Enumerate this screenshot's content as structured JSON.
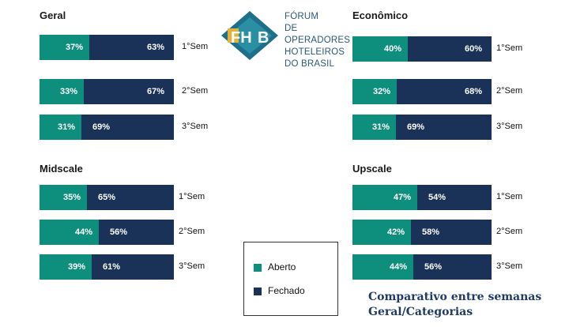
{
  "colors": {
    "aberto": "#0e8f7e",
    "fechado": "#1a3158"
  },
  "logo": {
    "icon": "fohb-logo-icon",
    "lines": [
      "FÓRUM",
      "DE OPERADORES",
      "HOTELEIROS",
      "DO BRASIL"
    ]
  },
  "legend": {
    "aberto": "Aberto",
    "fechado": "Fechado"
  },
  "caption": {
    "line1": "Comparativo entre semanas",
    "line2": "Geral/Categorias"
  },
  "chart_data": [
    {
      "type": "bar",
      "stacked": true,
      "orientation": "horizontal",
      "title": "Geral",
      "categories": [
        "1°Sem",
        "2°Sem",
        "3°Sem"
      ],
      "series": [
        {
          "name": "Aberto",
          "values": [
            37,
            33,
            31
          ],
          "labels": [
            "37%",
            "33%",
            "31%"
          ]
        },
        {
          "name": "Fechado",
          "values": [
            63,
            67,
            69
          ],
          "labels": [
            "63%",
            "67%",
            "69%"
          ]
        }
      ]
    },
    {
      "type": "bar",
      "stacked": true,
      "orientation": "horizontal",
      "title": "Econômico",
      "categories": [
        "1°Sem",
        "2°Sem",
        "3°Sem"
      ],
      "series": [
        {
          "name": "Aberto",
          "values": [
            40,
            32,
            31
          ],
          "labels": [
            "40%",
            "32%",
            "31%"
          ]
        },
        {
          "name": "Fechado",
          "values": [
            60,
            68,
            69
          ],
          "labels": [
            "60%",
            "68%",
            "69%"
          ]
        }
      ]
    },
    {
      "type": "bar",
      "stacked": true,
      "orientation": "horizontal",
      "title": "Midscale",
      "categories": [
        "1°Sem",
        "2°Sem",
        "3°Sem"
      ],
      "series": [
        {
          "name": "Aberto",
          "values": [
            35,
            44,
            39
          ],
          "labels": [
            "35%",
            "44%",
            "39%"
          ]
        },
        {
          "name": "Fechado",
          "values": [
            65,
            56,
            61
          ],
          "labels": [
            "65%",
            "56%",
            "61%"
          ]
        }
      ]
    },
    {
      "type": "bar",
      "stacked": true,
      "orientation": "horizontal",
      "title": "Upscale",
      "categories": [
        "1°Sem",
        "2°Sem",
        "3°Sem"
      ],
      "series": [
        {
          "name": "Aberto",
          "values": [
            47,
            42,
            44
          ],
          "labels": [
            "47%",
            "42%",
            "44%"
          ]
        },
        {
          "name": "Fechado",
          "values": [
            54,
            58,
            56
          ],
          "labels": [
            "54%",
            "58%",
            "56%"
          ]
        }
      ]
    }
  ]
}
